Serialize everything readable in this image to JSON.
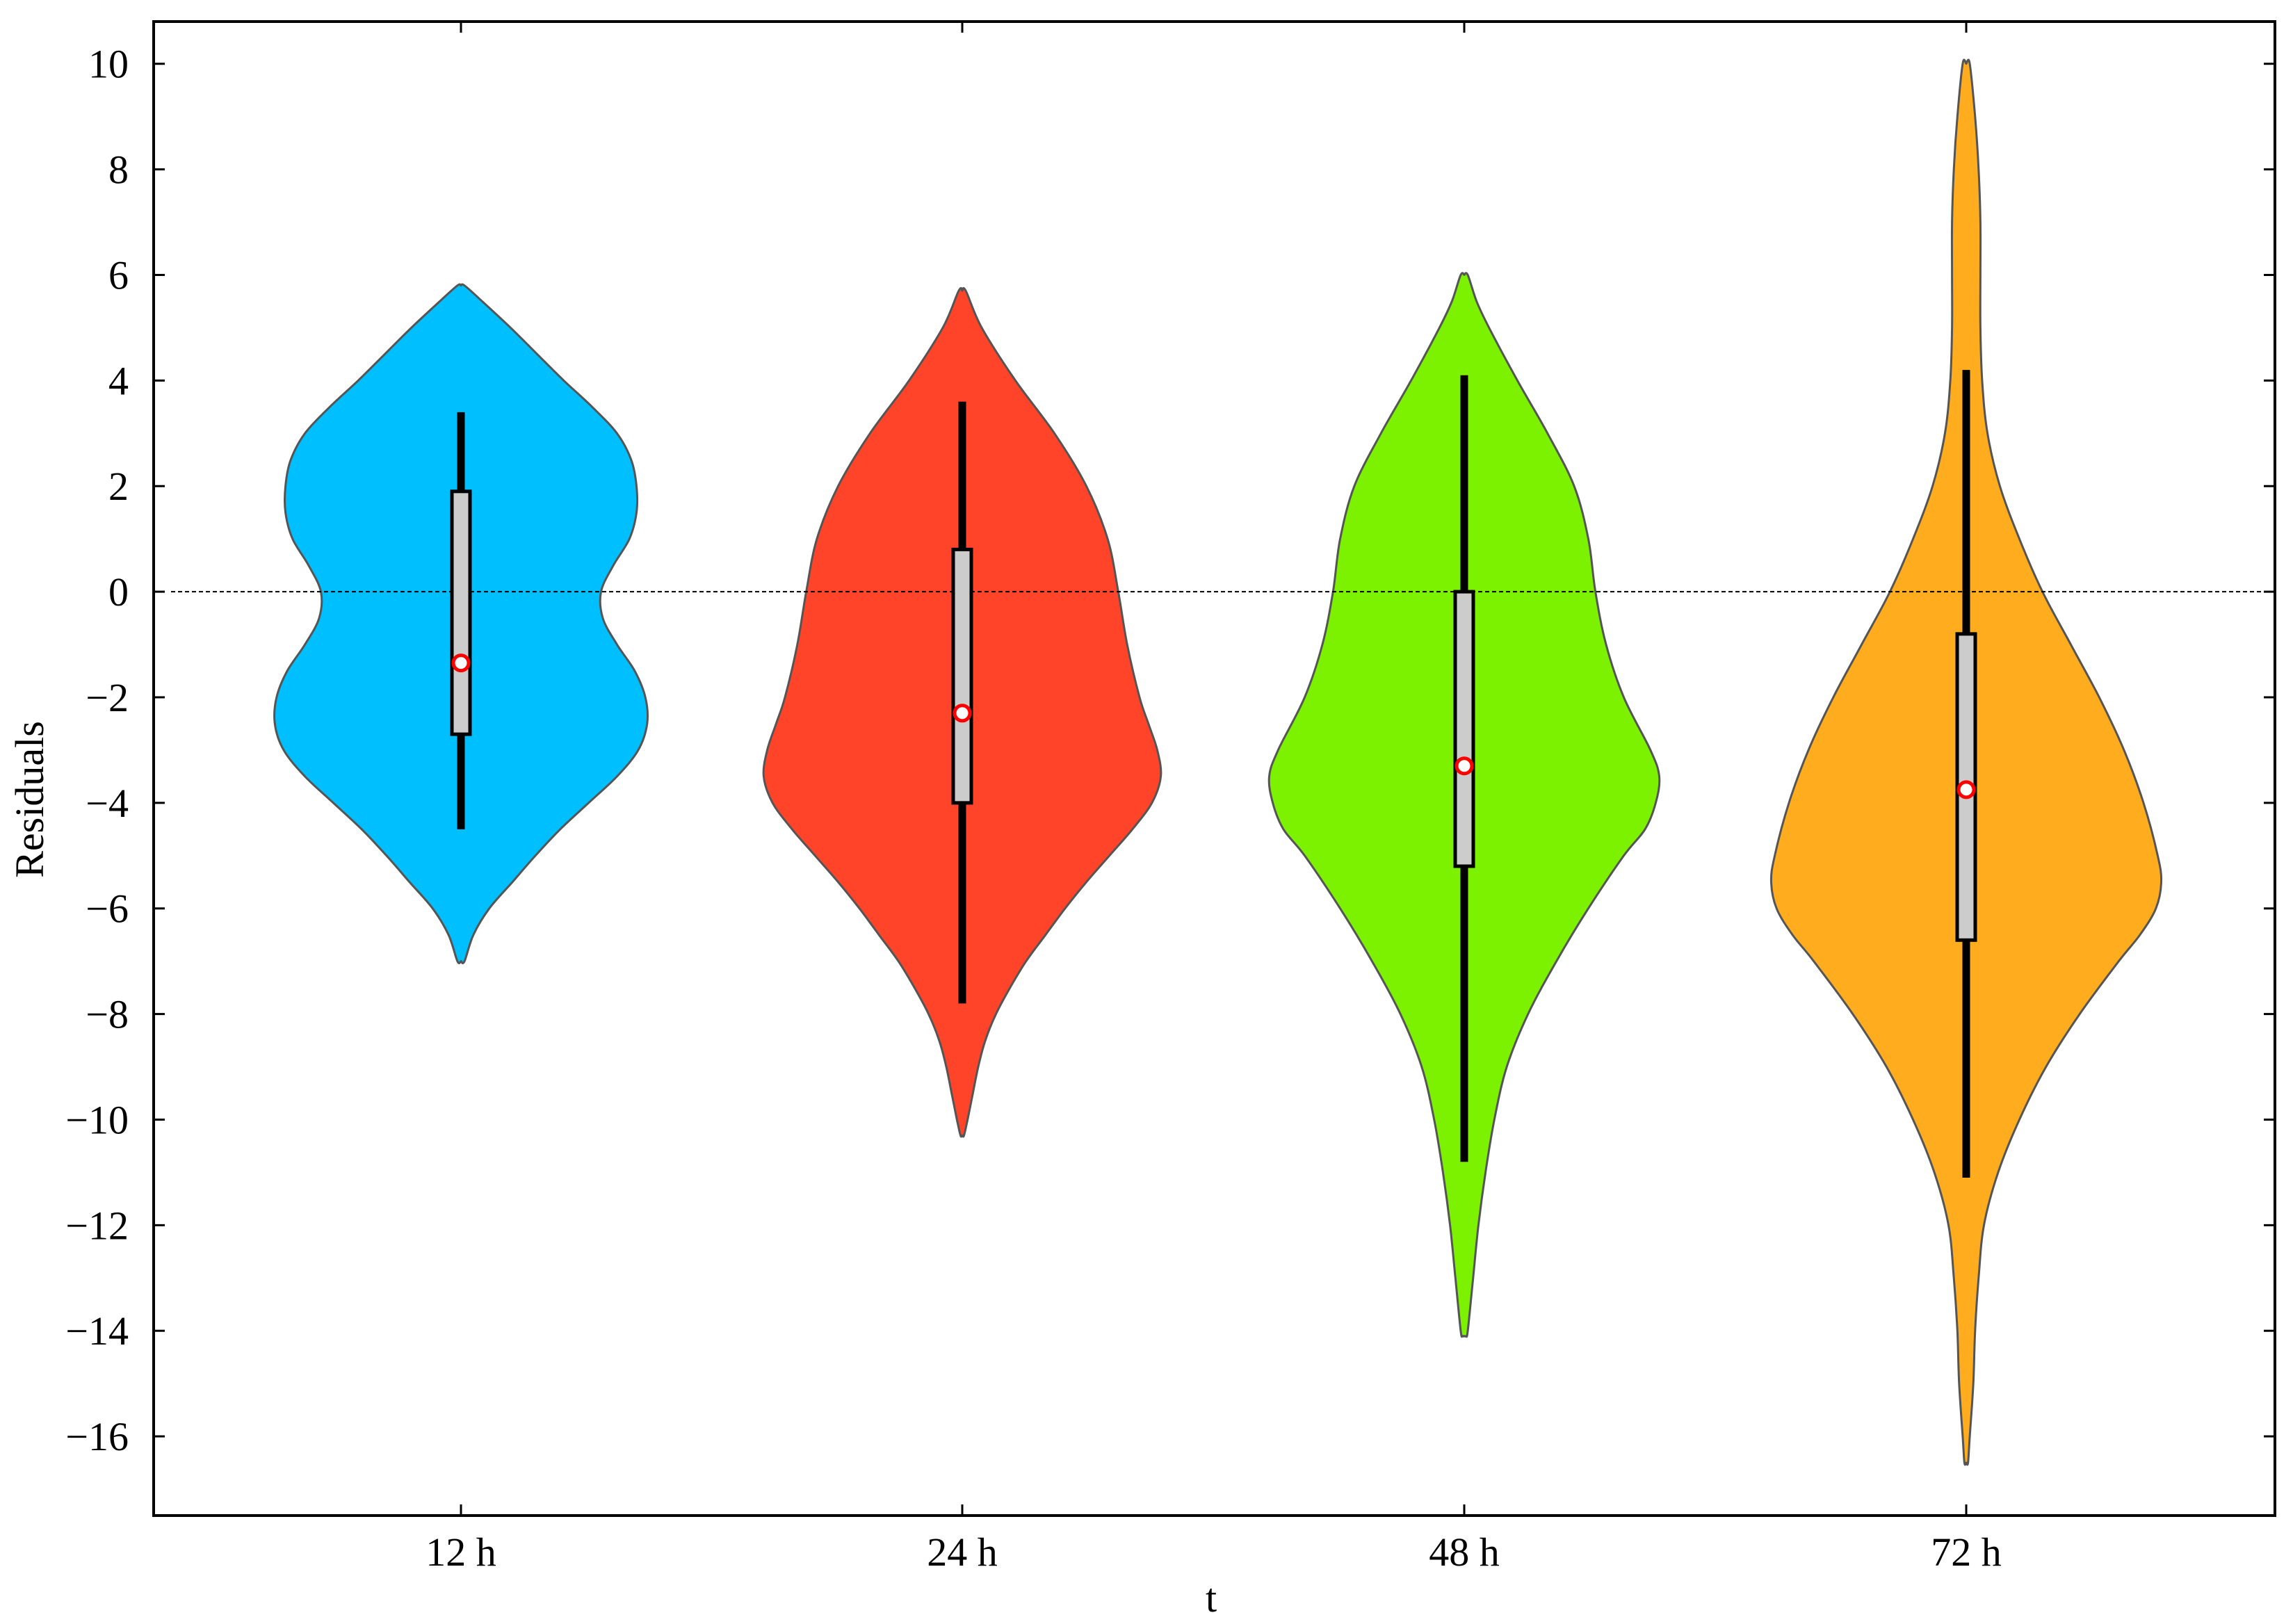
{
  "chart_data": {
    "type": "violin",
    "title": "",
    "xlabel": "t",
    "ylabel": "Residuals",
    "ylim": [
      -17.5,
      10.8
    ],
    "yticks": [
      10,
      8,
      6,
      4,
      2,
      0,
      -2,
      -4,
      -6,
      -8,
      -10,
      -12,
      -14,
      -16
    ],
    "yticklabels": [
      "10",
      "8",
      "6",
      "4",
      "2",
      "0",
      "−2",
      "−4",
      "−6",
      "−8",
      "−10",
      "−12",
      "−14",
      "−16"
    ],
    "reference_line": 0,
    "grid": false,
    "categories": [
      "12 h",
      "24 h",
      "48 h",
      "72 h"
    ],
    "series": [
      {
        "category": "12 h",
        "color": "#00BFFF",
        "min": -7.0,
        "max": 5.8,
        "whisker_low": -4.5,
        "whisker_high": 3.4,
        "q1": -2.7,
        "q3": 1.9,
        "mean": -1.35,
        "density": [
          [
            5.8,
            0.02
          ],
          [
            5.5,
            0.12
          ],
          [
            5.0,
            0.28
          ],
          [
            4.5,
            0.43
          ],
          [
            4.0,
            0.58
          ],
          [
            3.5,
            0.74
          ],
          [
            3.0,
            0.88
          ],
          [
            2.5,
            0.96
          ],
          [
            2.0,
            0.99
          ],
          [
            1.5,
            0.99
          ],
          [
            1.0,
            0.95
          ],
          [
            0.5,
            0.86
          ],
          [
            0.0,
            0.79
          ],
          [
            -0.5,
            0.8
          ],
          [
            -1.0,
            0.88
          ],
          [
            -1.5,
            0.98
          ],
          [
            -2.0,
            1.04
          ],
          [
            -2.5,
            1.05
          ],
          [
            -3.0,
            1.0
          ],
          [
            -3.5,
            0.88
          ],
          [
            -4.0,
            0.72
          ],
          [
            -4.5,
            0.56
          ],
          [
            -5.0,
            0.42
          ],
          [
            -5.5,
            0.29
          ],
          [
            -6.0,
            0.16
          ],
          [
            -6.5,
            0.07
          ],
          [
            -7.0,
            0.02
          ]
        ]
      },
      {
        "category": "24 h",
        "color": "#FF4429",
        "min": -10.3,
        "max": 5.7,
        "whisker_low": -7.8,
        "whisker_high": 3.6,
        "q1": -4.0,
        "q3": 0.8,
        "mean": -2.3,
        "density": [
          [
            5.7,
            0.02
          ],
          [
            5.0,
            0.11
          ],
          [
            4.0,
            0.3
          ],
          [
            3.0,
            0.52
          ],
          [
            2.0,
            0.7
          ],
          [
            1.0,
            0.82
          ],
          [
            0.0,
            0.88
          ],
          [
            -1.0,
            0.93
          ],
          [
            -2.0,
            1.0
          ],
          [
            -2.5,
            1.05
          ],
          [
            -3.0,
            1.1
          ],
          [
            -3.5,
            1.12
          ],
          [
            -4.0,
            1.07
          ],
          [
            -4.5,
            0.96
          ],
          [
            -5.0,
            0.83
          ],
          [
            -5.5,
            0.7
          ],
          [
            -6.0,
            0.58
          ],
          [
            -6.5,
            0.47
          ],
          [
            -7.0,
            0.36
          ],
          [
            -7.5,
            0.27
          ],
          [
            -8.0,
            0.19
          ],
          [
            -8.5,
            0.13
          ],
          [
            -9.0,
            0.09
          ],
          [
            -9.5,
            0.06
          ],
          [
            -10.0,
            0.03
          ],
          [
            -10.3,
            0.01
          ]
        ]
      },
      {
        "category": "48 h",
        "color": "#7CF200",
        "min": -14.1,
        "max": 6.0,
        "whisker_low": -10.8,
        "whisker_high": 4.1,
        "q1": -5.2,
        "q3": 0.0,
        "mean": -3.3,
        "density": [
          [
            6.0,
            0.02
          ],
          [
            5.5,
            0.07
          ],
          [
            5.0,
            0.14
          ],
          [
            4.0,
            0.3
          ],
          [
            3.0,
            0.47
          ],
          [
            2.0,
            0.62
          ],
          [
            1.0,
            0.7
          ],
          [
            0.0,
            0.74
          ],
          [
            -1.0,
            0.8
          ],
          [
            -2.0,
            0.9
          ],
          [
            -3.0,
            1.05
          ],
          [
            -3.5,
            1.1
          ],
          [
            -4.0,
            1.08
          ],
          [
            -4.5,
            1.02
          ],
          [
            -5.0,
            0.9
          ],
          [
            -6.0,
            0.7
          ],
          [
            -7.0,
            0.52
          ],
          [
            -8.0,
            0.36
          ],
          [
            -9.0,
            0.24
          ],
          [
            -10.0,
            0.17
          ],
          [
            -11.0,
            0.12
          ],
          [
            -12.0,
            0.08
          ],
          [
            -13.0,
            0.05
          ],
          [
            -14.0,
            0.02
          ],
          [
            -14.1,
            0.01
          ]
        ]
      },
      {
        "category": "72 h",
        "color": "#FFAD1F",
        "min": -16.5,
        "max": 10.0,
        "whisker_low": -11.1,
        "whisker_high": 4.2,
        "q1": -6.6,
        "q3": -0.8,
        "mean": -3.75,
        "density": [
          [
            10.0,
            0.02
          ],
          [
            9.0,
            0.05
          ],
          [
            8.0,
            0.07
          ],
          [
            7.0,
            0.08
          ],
          [
            6.0,
            0.08
          ],
          [
            5.0,
            0.08
          ],
          [
            4.0,
            0.09
          ],
          [
            3.0,
            0.12
          ],
          [
            2.0,
            0.19
          ],
          [
            1.0,
            0.3
          ],
          [
            0.0,
            0.43
          ],
          [
            -1.0,
            0.59
          ],
          [
            -2.0,
            0.75
          ],
          [
            -3.0,
            0.89
          ],
          [
            -4.0,
            1.0
          ],
          [
            -5.0,
            1.08
          ],
          [
            -5.5,
            1.1
          ],
          [
            -6.0,
            1.07
          ],
          [
            -6.5,
            0.98
          ],
          [
            -7.0,
            0.86
          ],
          [
            -8.0,
            0.64
          ],
          [
            -9.0,
            0.45
          ],
          [
            -10.0,
            0.3
          ],
          [
            -11.0,
            0.18
          ],
          [
            -12.0,
            0.1
          ],
          [
            -13.0,
            0.07
          ],
          [
            -14.0,
            0.05
          ],
          [
            -15.0,
            0.04
          ],
          [
            -16.0,
            0.02
          ],
          [
            -16.5,
            0.01
          ]
        ]
      }
    ]
  }
}
